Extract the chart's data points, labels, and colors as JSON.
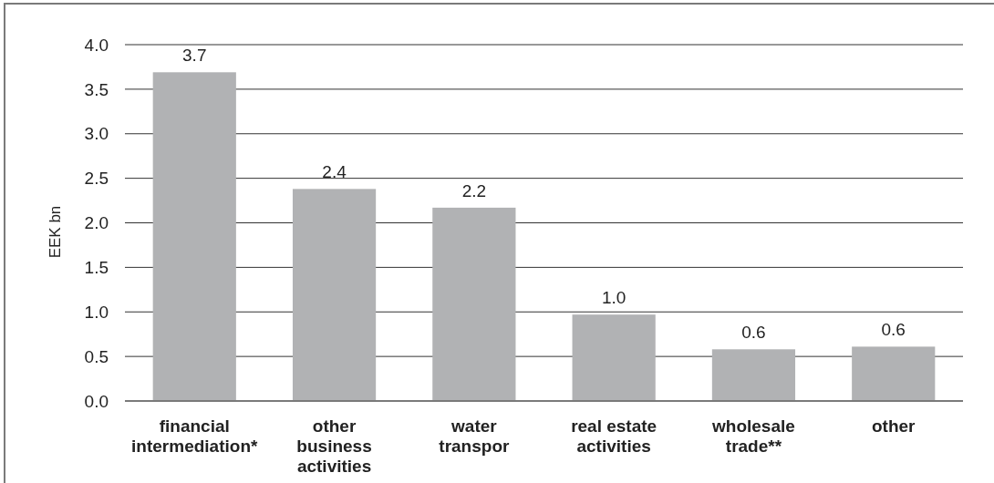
{
  "chart_data": {
    "type": "bar",
    "ylabel": "EEK bn",
    "categories": [
      "financial intermediation*",
      "other business activities",
      "water transpor",
      "real estate activities",
      "wholesale trade**",
      "other"
    ],
    "values": [
      3.69,
      2.38,
      2.17,
      0.97,
      0.58,
      0.61
    ],
    "value_labels": [
      "3.7",
      "2.4",
      "2.2",
      "1.0",
      "0.6",
      "0.6"
    ],
    "color": "#b1b2b4",
    "ylim": [
      0,
      4
    ],
    "yticks": [
      {
        "value": 0,
        "label": "0.0"
      },
      {
        "value": 0.5,
        "label": "0.5"
      },
      {
        "value": 1,
        "label": "1.0"
      },
      {
        "value": 1.5,
        "label": "1.5"
      },
      {
        "value": 2,
        "label": "2.0"
      },
      {
        "value": 2.5,
        "label": "2.5"
      },
      {
        "value": 3,
        "label": "3.0"
      },
      {
        "value": 3.5,
        "label": "3.5"
      },
      {
        "value": 4,
        "label": "4.0"
      }
    ],
    "grid": "y"
  }
}
